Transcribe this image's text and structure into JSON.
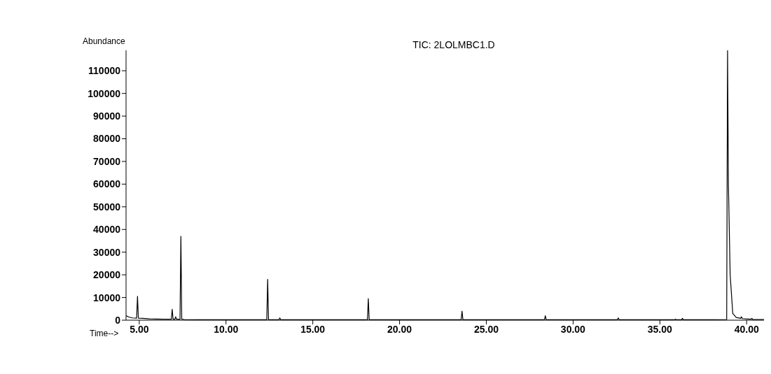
{
  "chart_data": {
    "type": "line",
    "title": "TIC: 2LOLMBC1.D",
    "xlabel": "Time-->",
    "ylabel": "Abundance",
    "x": [
      4.24,
      4.4,
      4.6,
      4.85,
      4.9,
      4.95,
      5.2,
      5.6,
      6.0,
      6.4,
      6.85,
      6.9,
      6.95,
      7.05,
      7.1,
      7.15,
      7.35,
      7.4,
      7.45,
      7.6,
      8.5,
      9.5,
      10.5,
      11.5,
      12.35,
      12.4,
      12.45,
      13.05,
      13.1,
      13.15,
      15.0,
      18.15,
      18.2,
      18.25,
      20.0,
      23.55,
      23.6,
      23.65,
      26.0,
      28.35,
      28.4,
      28.45,
      30.5,
      32.55,
      32.6,
      32.65,
      34.5,
      35.85,
      35.9,
      35.95,
      36.25,
      36.3,
      36.35,
      38.0,
      38.85,
      38.9,
      38.95,
      39.05,
      39.2,
      39.4,
      39.65,
      39.7,
      39.75,
      40.25,
      40.3,
      40.35,
      41.0
    ],
    "series": [
      {
        "color": "#000000",
        "values": [
          2000,
          1400,
          1000,
          900,
          10500,
          900,
          800,
          600,
          500,
          400,
          400,
          4800,
          400,
          400,
          1500,
          400,
          400,
          37000,
          400,
          300,
          200,
          200,
          200,
          200,
          200,
          18000,
          200,
          200,
          1000,
          200,
          200,
          200,
          9500,
          200,
          200,
          200,
          4000,
          200,
          200,
          200,
          2000,
          200,
          200,
          200,
          1000,
          200,
          200,
          200,
          500,
          200,
          200,
          800,
          200,
          200,
          300,
          119000,
          60000,
          20000,
          3000,
          1200,
          800,
          1500,
          700,
          400,
          800,
          300,
          300
        ]
      }
    ],
    "xlim": [
      4.24,
      41.0
    ],
    "ylim": [
      0,
      119000
    ],
    "xticks": [
      {
        "value": 5,
        "label": "5.00"
      },
      {
        "value": 10,
        "label": "10.00"
      },
      {
        "value": 15,
        "label": "15.00"
      },
      {
        "value": 20,
        "label": "20.00"
      },
      {
        "value": 25,
        "label": "25.00"
      },
      {
        "value": 30,
        "label": "30.00"
      },
      {
        "value": 35,
        "label": "35.00"
      },
      {
        "value": 40,
        "label": "40.00"
      }
    ],
    "yticks": [
      0,
      10000,
      20000,
      30000,
      40000,
      50000,
      60000,
      70000,
      80000,
      90000,
      100000,
      110000
    ],
    "grid": false,
    "legend": false,
    "marker": "none",
    "line_style": "solid"
  }
}
